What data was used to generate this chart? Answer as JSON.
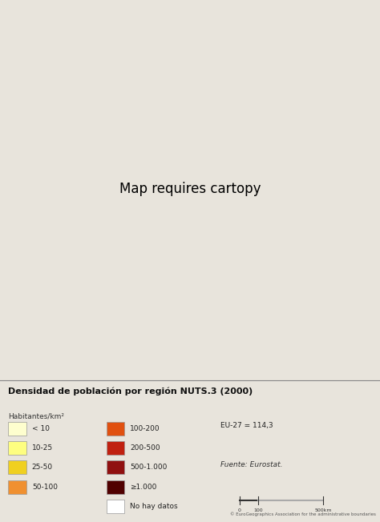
{
  "title": "Densidad de población por región NUTS.3 (2000)",
  "unit_label": "Habitantes/km²",
  "legend_entries": [
    {
      "label": "< 10",
      "color": "#FEFECE",
      "edgecolor": "#999999"
    },
    {
      "label": "10-25",
      "color": "#FEFE80",
      "edgecolor": "#999999"
    },
    {
      "label": "25-50",
      "color": "#F0D020",
      "edgecolor": "#999999"
    },
    {
      "label": "50-100",
      "color": "#F09030",
      "edgecolor": "#999999"
    },
    {
      "label": "100-200",
      "color": "#E05010",
      "edgecolor": "#999999"
    },
    {
      "label": "200-500",
      "color": "#C02010",
      "edgecolor": "#999999"
    },
    {
      "label": "500-1.000",
      "color": "#901010",
      "edgecolor": "#999999"
    },
    {
      "label": "≥1.000",
      "color": "#500000",
      "edgecolor": "#999999"
    },
    {
      "label": "No hay datos",
      "color": "#FFFFFF",
      "edgecolor": "#999999"
    }
  ],
  "eu27_label": "EU-27 = 114,3",
  "source_label": "Fuente: Eurostat.",
  "copyright_label": "© EuroGeographics Association for the administrative boundaries",
  "map_bg": "#C8DCF0",
  "land_noneu_bg": "#B0B8C0",
  "land_bg": "#E8E0D0",
  "legend_bg": "#E8E4DC",
  "border_color": "#555555",
  "title_fontsize": 8,
  "unit_fontsize": 6.5,
  "legend_fontsize": 6.5,
  "small_fontsize": 5
}
